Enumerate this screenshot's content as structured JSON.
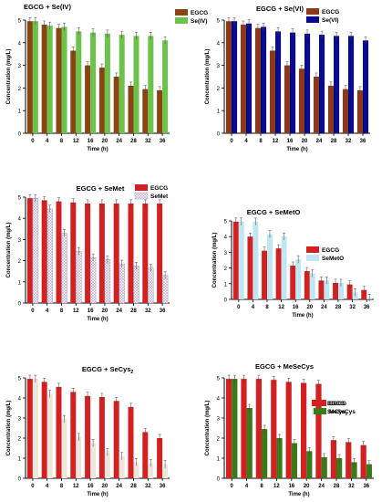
{
  "chart_data": [
    {
      "type": "bar",
      "title": "EGCG + Se(IV)",
      "xlabel": "Time (h)",
      "ylabel": "Concentration (mg/L)",
      "ylim": [
        0,
        5
      ],
      "grid": false,
      "legend_position": "top-right",
      "categories": [
        "0",
        "4",
        "8",
        "12",
        "16",
        "20",
        "24",
        "28",
        "32",
        "36"
      ],
      "series": [
        {
          "name": "EGCG",
          "color": "#8b4513",
          "values": [
            4.95,
            4.8,
            4.65,
            3.65,
            3.0,
            2.9,
            2.5,
            2.1,
            1.95,
            1.9
          ]
        },
        {
          "name": "Se(IV)",
          "color": "#6cc24a",
          "values": [
            4.95,
            4.75,
            4.7,
            4.5,
            4.45,
            4.4,
            4.35,
            4.3,
            4.3,
            4.1
          ]
        }
      ]
    },
    {
      "type": "bar",
      "title": "EGCG + Se(VI)",
      "xlabel": "Time (h)",
      "ylabel": "Concentration (mg/L)",
      "ylim": [
        0,
        5
      ],
      "grid": false,
      "legend_position": "top-right",
      "categories": [
        "0",
        "4",
        "8",
        "12",
        "16",
        "20",
        "24",
        "28",
        "32",
        "36"
      ],
      "series": [
        {
          "name": "EGCG",
          "color": "#8b3a1a",
          "values": [
            4.95,
            4.8,
            4.65,
            3.65,
            3.0,
            2.85,
            2.5,
            2.1,
            1.95,
            1.9
          ]
        },
        {
          "name": "Se(VI)",
          "color": "#0a0a8c",
          "values": [
            4.95,
            4.85,
            4.7,
            4.5,
            4.45,
            4.4,
            4.35,
            4.3,
            4.3,
            4.1
          ]
        }
      ]
    },
    {
      "type": "bar",
      "title": "EGCG + SeMet",
      "xlabel": "Time (h)",
      "ylabel": "Concentration (mg/L)",
      "ylim": [
        0,
        5
      ],
      "grid": false,
      "legend_position": "top-right",
      "categories": [
        "0",
        "4",
        "8",
        "12",
        "16",
        "20",
        "24",
        "28",
        "32",
        "36"
      ],
      "series": [
        {
          "name": "EGCG",
          "color": "#d42020",
          "values": [
            4.95,
            4.85,
            4.8,
            4.75,
            4.7,
            4.7,
            4.7,
            4.7,
            4.7,
            4.7
          ]
        },
        {
          "name": "SeMet",
          "color": "#dcd4e6",
          "pattern": "crosshatch",
          "values": [
            4.95,
            4.45,
            3.3,
            2.45,
            2.15,
            2.05,
            1.85,
            1.75,
            1.65,
            1.3
          ]
        }
      ]
    },
    {
      "type": "bar",
      "title": "EGCG + SeMetO",
      "xlabel": "Time (h)",
      "ylabel": "Concentration (mg/L)",
      "ylim": [
        0,
        5
      ],
      "grid": false,
      "legend_position": "top-right",
      "categories": [
        "0",
        "4",
        "8",
        "12",
        "16",
        "20",
        "24",
        "28",
        "32",
        "36"
      ],
      "series": [
        {
          "name": "EGCG",
          "color": "#d42020",
          "values": [
            4.95,
            4.0,
            3.1,
            3.25,
            2.15,
            1.8,
            1.2,
            1.05,
            0.95,
            0.6
          ]
        },
        {
          "name": "SeMetO",
          "color": "#bfe6f2",
          "values": [
            4.95,
            4.95,
            4.15,
            4.0,
            2.55,
            1.65,
            1.2,
            1.05,
            0.45,
            0.1
          ]
        }
      ]
    },
    {
      "type": "bar",
      "title": "EGCG + SeCys",
      "title_subscript": "2",
      "xlabel": "Time (h)",
      "ylabel": "Concentration (mg/L)",
      "ylim": [
        0,
        5
      ],
      "grid": false,
      "legend_position": "top-right",
      "categories": [
        "0",
        "4",
        "8",
        "12",
        "16",
        "20",
        "24",
        "28",
        "32",
        "36"
      ],
      "series": [
        {
          "name": "EGCG",
          "color": "#d42020",
          "values": [
            4.95,
            4.8,
            4.55,
            4.3,
            4.1,
            4.05,
            3.85,
            3.55,
            2.3,
            2.0
          ]
        },
        {
          "name": "SeCys",
          "subscript": "2",
          "color": "#ece6dc",
          "values": [
            4.95,
            4.2,
            2.95,
            2.05,
            1.75,
            1.3,
            1.1,
            0.8,
            0.75,
            0.7
          ]
        }
      ]
    },
    {
      "type": "bar",
      "title": "EGCG + MeSeCys",
      "xlabel": "Time (h)",
      "ylabel": "Concentration (mg/L)",
      "ylim": [
        0,
        5
      ],
      "grid": false,
      "legend_position": "top-right",
      "categories": [
        "0",
        "4",
        "8",
        "12",
        "16",
        "20",
        "24",
        "28",
        "32",
        "36"
      ],
      "series": [
        {
          "name": "EGCG",
          "color": "#d42020",
          "values": [
            4.95,
            4.95,
            4.95,
            4.9,
            4.8,
            4.75,
            4.7,
            1.9,
            1.8,
            1.65
          ]
        },
        {
          "name": "MeSeCys",
          "color": "#3a7a18",
          "values": [
            4.95,
            3.5,
            2.45,
            2.0,
            1.75,
            1.35,
            1.05,
            1.0,
            0.8,
            0.7
          ]
        }
      ]
    }
  ]
}
